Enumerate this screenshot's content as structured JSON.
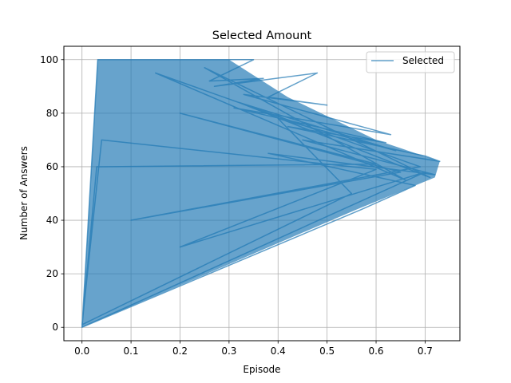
{
  "chart_data": {
    "type": "line",
    "title": "Selected Amount",
    "xlabel": "Episode",
    "ylabel": "Number of Answers",
    "xlim": [
      -0.037,
      0.771
    ],
    "ylim": [
      -5,
      105
    ],
    "xticks": [
      0.0,
      0.1,
      0.2,
      0.3,
      0.4,
      0.5,
      0.6,
      0.7
    ],
    "xtick_labels": [
      "0.0",
      "0.1",
      "0.2",
      "0.3",
      "0.4",
      "0.5",
      "0.6",
      "0.7"
    ],
    "yticks": [
      0,
      20,
      40,
      60,
      80,
      100
    ],
    "ytick_labels": [
      "0",
      "20",
      "40",
      "60",
      "80",
      "100"
    ],
    "grid": true,
    "legend_position": "top-right",
    "series": [
      {
        "name": "Selected",
        "color": "#1f77b4",
        "alpha": 0.7,
        "points": [
          [
            0.0,
            0
          ],
          [
            0.032,
            100
          ],
          [
            0.35,
            100
          ],
          [
            0.26,
            92
          ],
          [
            0.37,
            93
          ],
          [
            0.27,
            90
          ],
          [
            0.48,
            95
          ],
          [
            0.38,
            86
          ],
          [
            0.5,
            83
          ],
          [
            0.33,
            87
          ],
          [
            0.63,
            72
          ],
          [
            0.31,
            82
          ],
          [
            0.62,
            69
          ],
          [
            0.42,
            75
          ],
          [
            0.7,
            64
          ],
          [
            0.73,
            62
          ],
          [
            0.45,
            70
          ],
          [
            0.72,
            57
          ],
          [
            0.38,
            65
          ],
          [
            0.68,
            53
          ],
          [
            0.57,
            44
          ],
          [
            0.0,
            0
          ],
          [
            0.03,
            60
          ],
          [
            0.6,
            61
          ],
          [
            0.2,
            80
          ],
          [
            0.65,
            58
          ],
          [
            0.1,
            40
          ],
          [
            0.69,
            60
          ],
          [
            0.15,
            95
          ],
          [
            0.66,
            55
          ],
          [
            0.25,
            97
          ],
          [
            0.71,
            56
          ],
          [
            0.32,
            84
          ],
          [
            0.64,
            66
          ],
          [
            0.4,
            78
          ],
          [
            0.55,
            50
          ],
          [
            0.0,
            1
          ],
          [
            0.04,
            70
          ],
          [
            0.6,
            59
          ],
          [
            0.2,
            30
          ],
          [
            0.7,
            58
          ],
          [
            0.0,
            0
          ]
        ]
      }
    ]
  }
}
